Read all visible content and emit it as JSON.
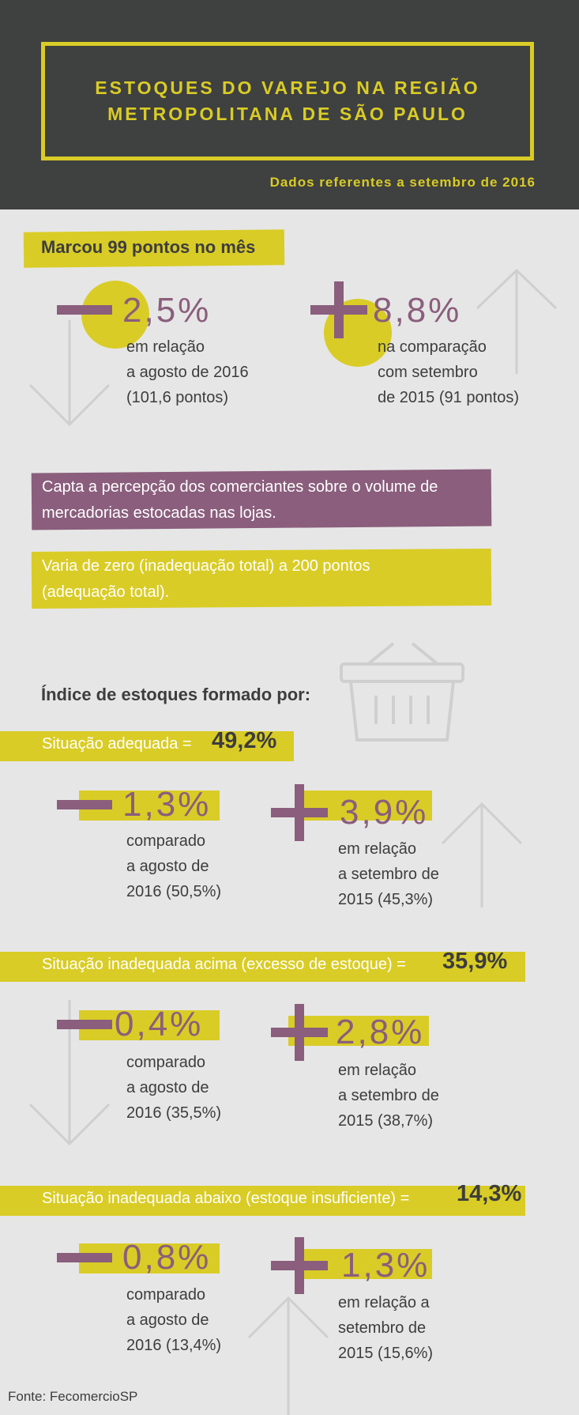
{
  "header": {
    "title_line1": "ESTOQUES DO VAREJO NA REGIÃO",
    "title_line2": "METROPOLITANA DE SÃO PAULO",
    "subtitle": "Dados referentes a setembro de 2016"
  },
  "summary": {
    "headline": "Marcou 99 pontos no mês",
    "left": {
      "value": "2,5%",
      "lines": [
        "em relação",
        "a agosto de 2016",
        "(101,6 pontos)"
      ]
    },
    "right": {
      "value": "8,8%",
      "lines": [
        "na comparação",
        "com setembro",
        "de 2015 (91 pontos)"
      ]
    }
  },
  "info": {
    "purple_lines": [
      "Capta a percepção dos comerciantes sobre o volume de",
      "mercadorias estocadas nas lojas."
    ],
    "yellow_lines": [
      "Varia de zero (inadequação total) a 200 pontos",
      "(adequação total)."
    ]
  },
  "index_heading": "Índice de estoques formado por:",
  "sections": [
    {
      "label": "Situação adequada =",
      "value": "49,2%",
      "left": {
        "value": "1,3%",
        "lines": [
          "comparado",
          "a agosto de",
          "2016 (50,5%)"
        ]
      },
      "right": {
        "value": "3,9%",
        "lines": [
          "em relação",
          "a setembro de",
          "2015 (45,3%)"
        ]
      }
    },
    {
      "label": "Situação inadequada acima (excesso de estoque) =",
      "value": "35,9%",
      "left": {
        "value": "0,4%",
        "lines": [
          "comparado",
          "a agosto de",
          "2016 (35,5%)"
        ]
      },
      "right": {
        "value": "2,8%",
        "lines": [
          "em relação",
          "a setembro de",
          "2015 (38,7%)"
        ]
      }
    },
    {
      "label": "Situação inadequada abaixo (estoque insuficiente) =",
      "value": "14,3%",
      "left": {
        "value": "0,8%",
        "lines": [
          "comparado",
          "a agosto de",
          "2016 (13,4%)"
        ]
      },
      "right": {
        "value": "1,3%",
        "lines": [
          "em relação a",
          "setembro de",
          "2015 (15,6%)"
        ]
      }
    }
  ],
  "footer": "Fonte: FecomercioSP",
  "colors": {
    "yellow": "#d9cc26",
    "purple": "#8a5e7c",
    "dark": "#3f4040",
    "background": "#e6e6e6"
  }
}
